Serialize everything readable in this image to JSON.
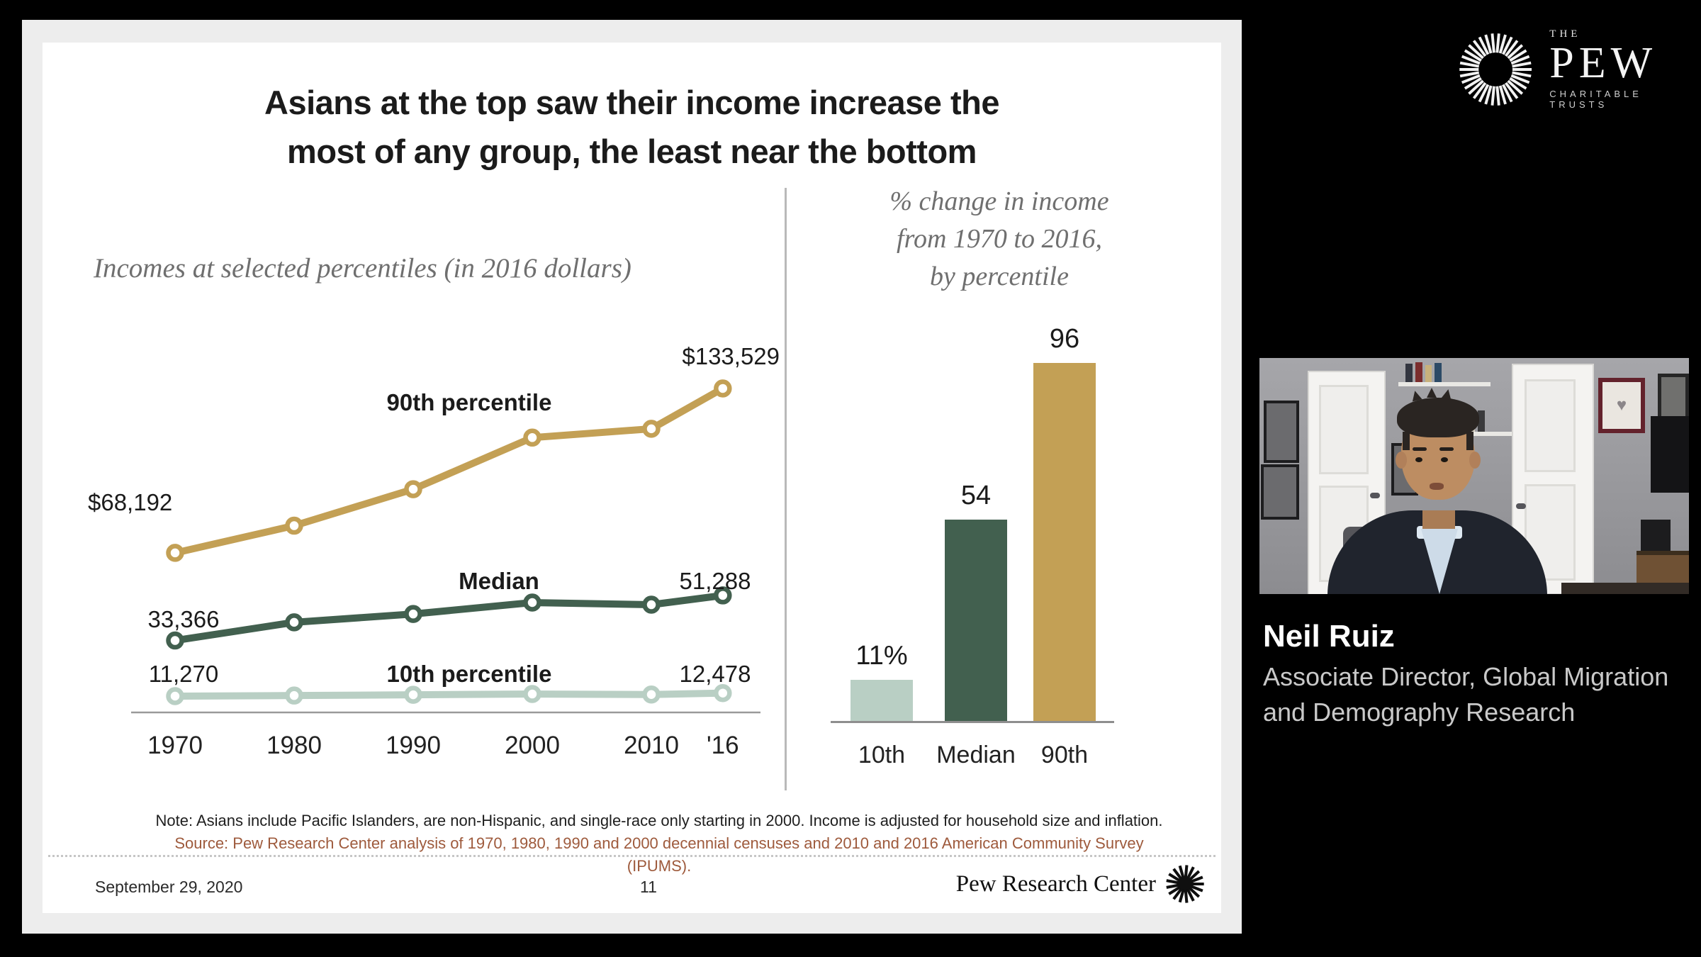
{
  "pct_logo": {
    "the": "THE",
    "pew": "PEW",
    "tagline": "CHARITABLE TRUSTS"
  },
  "slide": {
    "title_lines": [
      "Asians at the top saw their income increase the",
      "most of any group, the least near the bottom"
    ],
    "note": "Note: Asians include Pacific Islanders, are non-Hispanic, and single-race only starting in 2000. Income is adjusted for household size and inflation.",
    "source": "Source: Pew Research Center analysis of 1970, 1980, 1990 and 2000 decennial censuses and 2010 and 2016 American Community Survey (IPUMS).",
    "footer": {
      "date": "September 29, 2020",
      "page": "11",
      "brand": "Pew Research Center"
    }
  },
  "colors": {
    "gold": "#c3a055",
    "dark_green": "#42604f",
    "sage": "#b9cfc4",
    "source_text": "#9e5a3c"
  },
  "chart_data": [
    {
      "type": "line",
      "title": "Incomes at selected percentiles (in 2016 dollars)",
      "x": [
        1970,
        1980,
        1990,
        2000,
        2010,
        2016
      ],
      "x_tick_labels": [
        "1970",
        "1980",
        "1990",
        "2000",
        "2010",
        "'16"
      ],
      "ylim": [
        0,
        145000
      ],
      "grid": false,
      "series": [
        {
          "name": "90th percentile",
          "color": "#c3a055",
          "values": [
            68192,
            79000,
            93500,
            114000,
            117500,
            133529
          ],
          "start_label": "$68,192",
          "end_label": "$133,529"
        },
        {
          "name": "Median",
          "color": "#42604f",
          "values": [
            33366,
            40600,
            43900,
            48450,
            47600,
            51288
          ],
          "start_label": "33,366",
          "end_label": "51,288"
        },
        {
          "name": "10th percentile",
          "color": "#b9cfc4",
          "values": [
            11270,
            11500,
            11800,
            12100,
            11900,
            12478
          ],
          "start_label": "11,270",
          "end_label": "12,478"
        }
      ]
    },
    {
      "type": "bar",
      "title": "% change in income from 1970 to 2016, by percentile",
      "title_lines": [
        "% change in income",
        "from 1970 to 2016,",
        "by percentile"
      ],
      "categories": [
        "10th",
        "Median",
        "90th"
      ],
      "values": [
        11,
        54,
        96
      ],
      "value_labels": [
        "11%",
        "54",
        "96"
      ],
      "colors": [
        "#b9cfc4",
        "#42604f",
        "#c3a055"
      ],
      "ylim": [
        0,
        100
      ]
    }
  ],
  "speaker": {
    "name": "Neil Ruiz",
    "role_lines": [
      "Associate Director, Global Migration",
      "and Demography Research"
    ]
  }
}
